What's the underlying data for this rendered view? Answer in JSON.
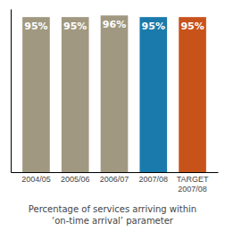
{
  "chart_data": {
    "type": "bar",
    "title": "Percentage of services arriving within\n‘on-time arrival’ parameter",
    "categories": [
      "2004/05",
      "2005/06",
      "2006/07",
      "2007/08",
      "TARGET\n2007/08"
    ],
    "values": [
      95,
      95,
      96,
      95,
      95
    ],
    "value_labels": [
      "95%",
      "95%",
      "96%",
      "95%",
      "95%"
    ],
    "colors": [
      "#a09880",
      "#a09880",
      "#a09880",
      "#1a7aab",
      "#c8531a"
    ],
    "ylim": [
      0,
      100
    ],
    "data_labels": true,
    "tick_labels": "x"
  }
}
